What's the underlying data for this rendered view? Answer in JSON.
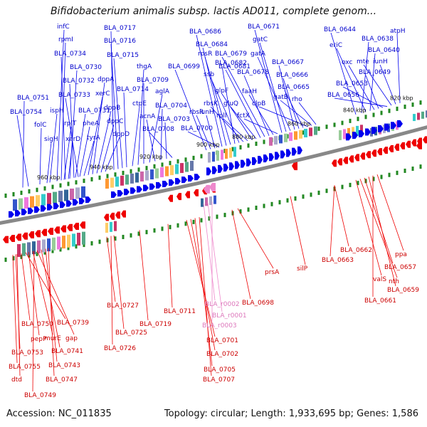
{
  "title": "Bifidobacterium animalis subsp. lactis AD011, complete genom...",
  "footer": {
    "accession": "Accession: NC_011835",
    "summary": "Topology: circular; Length: 1,933,695 bp; Genes: 1,586"
  },
  "colors": {
    "forward": "#0000ee",
    "reverse": "#ee0000",
    "rna": "#ee88cc",
    "label_forward": "#0000cc",
    "label_reverse": "#cc0000",
    "label_rna": "#dd77bb",
    "backbone": "#888888",
    "tick": "#228822"
  },
  "scale_labels": [
    "960 kbp",
    "940 kbp",
    "920 kbp",
    "900 kbp",
    "880 kbp",
    "860 kbp",
    "840 kbp",
    "820 kbp"
  ],
  "forward_labels": [
    "infC",
    "rpmI",
    "BLA_0734",
    "BLA_0730",
    "BLA_0732",
    "BLA_0733",
    "BLA_0751",
    "BLA_0754",
    "ispH",
    "folC",
    "sigH",
    "rplT",
    "xerD",
    "BLA_0731",
    "pheA",
    "tyrA",
    "xerC",
    "dppA",
    "dppB",
    "dppC",
    "dppD",
    "BLA_0717",
    "BLA_0716",
    "BLA_0715",
    "BLA_0714",
    "ctpE",
    "thgA",
    "BLA_0709",
    "aglA",
    "acnA",
    "BLA_0704",
    "BLA_0703",
    "BLA_0708",
    "BLA_0699",
    "rbsR",
    "iunH",
    "BLA_0700",
    "BLA_0686",
    "BLA_0684",
    "rpsR",
    "BLA_0682",
    "ssb",
    "rbsK",
    "rplI",
    "glpF",
    "gluQ",
    "BLA_0681",
    "BLA_0679",
    "BLA_0678",
    "faaH",
    "fctX",
    "BLA_0671",
    "gatC",
    "gatA",
    "BLA_0667",
    "BLA_0666",
    "BLA_0665",
    "clpB",
    "gatB",
    "rho",
    "BLA_0644",
    "BLA_0638",
    "eriC",
    "BLA_0640",
    "oxc",
    "BLA_0649",
    "BLA_0653",
    "BLA_0656",
    "mte",
    "iunH",
    "atpH"
  ],
  "reverse_labels": [
    "BLA_0750",
    "BLA_0739",
    "pepP",
    "murE",
    "gap",
    "BLA_0753",
    "BLA_0741",
    "BLA_0755",
    "BLA_0743",
    "dtd",
    "BLA_0747",
    "BLA_0749",
    "BLA_0727",
    "BLA_0725",
    "BLA_0726",
    "BLA_0719",
    "BLA_0711",
    "BLA_0701",
    "BLA_0702",
    "BLA_0705",
    "BLA_0707",
    "BLA_0698",
    "prsA",
    "silP",
    "BLA_0662",
    "BLA_0663",
    "valS",
    "nth",
    "BLA_0657",
    "BLA_0659",
    "BLA_0661",
    "ppa"
  ],
  "rna_labels": [
    "BLA_r0002",
    "BLA_r0001",
    "BLA_r0003"
  ]
}
